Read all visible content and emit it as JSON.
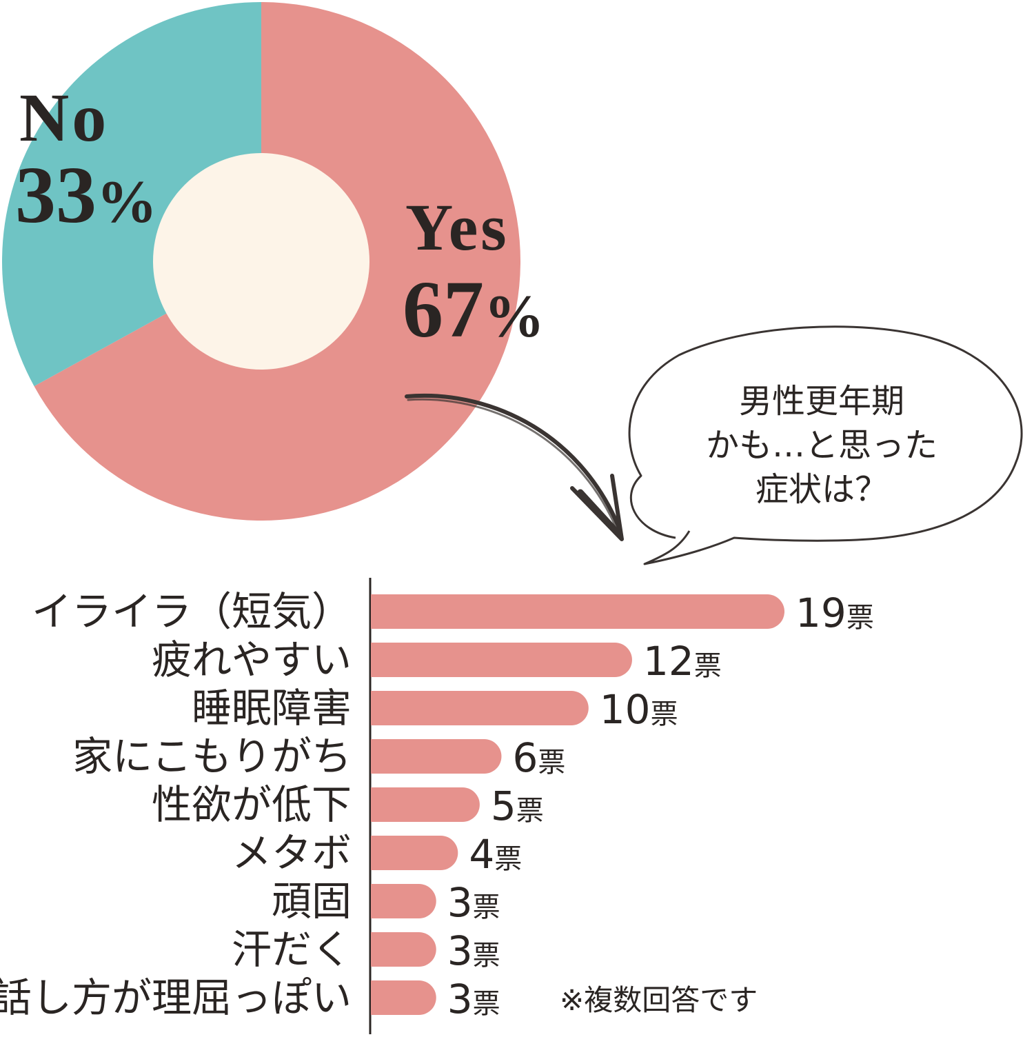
{
  "chart_data": [
    {
      "type": "pie",
      "style": "donut",
      "slices": [
        {
          "label": "Yes",
          "value": 67,
          "value_label": "67",
          "unit": "%",
          "color": "#e6928d"
        },
        {
          "label": "No",
          "value": 33,
          "value_label": "33",
          "unit": "%",
          "color": "#6fc4c4"
        }
      ],
      "center_color": "#fdf4e8"
    },
    {
      "type": "bar",
      "orientation": "horizontal",
      "categories": [
        "イライラ（短気）",
        "疲れやすい",
        "睡眠障害",
        "家にこもりがち",
        "性欲が低下",
        "メタボ",
        "頑固",
        "汗だく",
        "話し方が理屈っぽい"
      ],
      "values": [
        19,
        12,
        10,
        6,
        5,
        4,
        3,
        3,
        3
      ],
      "value_unit": "票",
      "bar_color": "#e6928d",
      "xlim": [
        0,
        19
      ],
      "note": "※複数回答です"
    }
  ],
  "bubble": {
    "lines": [
      "男性更年期",
      "かも…と思った",
      "症状は？"
    ]
  }
}
